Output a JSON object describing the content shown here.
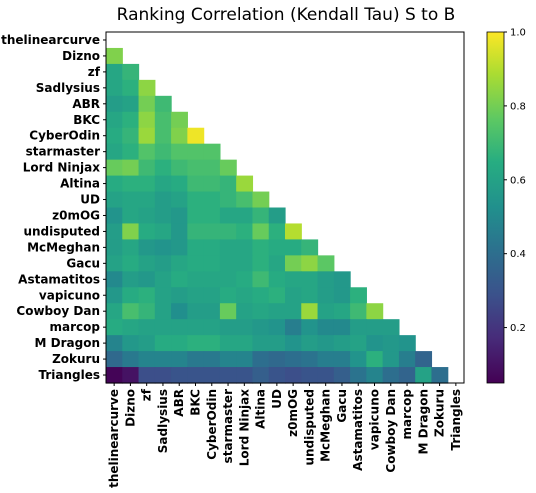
{
  "chart_data": {
    "type": "heatmap",
    "title": "Ranking Correlation (Kendall Tau) S to B",
    "labels": [
      "thelinearcurve",
      "Dizno",
      "zf",
      "Sadlysius",
      "ABR",
      "BKC",
      "CyberOdin",
      "starmaster",
      "Lord Ninjax",
      "Altina",
      "UD",
      "z0mOG",
      "undisputed",
      "McMeghan",
      "Gacu",
      "Astamatitos",
      "vapicuno",
      "Cowboy Dan",
      "marcop",
      "M Dragon",
      "Zokuru",
      "Triangles"
    ],
    "colormap": "viridis",
    "clim": [
      0.05,
      1.0
    ],
    "colorbar_ticks": [
      "0.2",
      "0.4",
      "0.6",
      "0.8",
      "1.0"
    ],
    "colorbar_tick_values": [
      0.2,
      0.4,
      0.6,
      0.8,
      1.0
    ],
    "matrix_lower": [
      [],
      [
        0.82
      ],
      [
        0.62,
        0.68
      ],
      [
        0.62,
        0.66,
        0.84
      ],
      [
        0.58,
        0.6,
        0.8,
        0.7
      ],
      [
        0.62,
        0.66,
        0.84,
        0.72,
        0.8
      ],
      [
        0.64,
        0.68,
        0.86,
        0.72,
        0.82,
        0.98
      ],
      [
        0.62,
        0.66,
        0.74,
        0.7,
        0.74,
        0.74,
        0.74
      ],
      [
        0.78,
        0.8,
        0.7,
        0.66,
        0.7,
        0.72,
        0.72,
        0.78
      ],
      [
        0.64,
        0.66,
        0.66,
        0.62,
        0.64,
        0.7,
        0.7,
        0.68,
        0.86
      ],
      [
        0.6,
        0.62,
        0.62,
        0.58,
        0.6,
        0.66,
        0.66,
        0.68,
        0.72,
        0.8
      ],
      [
        0.54,
        0.62,
        0.6,
        0.58,
        0.56,
        0.66,
        0.66,
        0.62,
        0.62,
        0.68,
        0.58
      ],
      [
        0.58,
        0.82,
        0.64,
        0.62,
        0.56,
        0.68,
        0.68,
        0.68,
        0.66,
        0.78,
        0.66,
        0.9
      ],
      [
        0.58,
        0.62,
        0.56,
        0.54,
        0.56,
        0.64,
        0.64,
        0.62,
        0.62,
        0.66,
        0.64,
        0.64,
        0.68
      ],
      [
        0.6,
        0.64,
        0.6,
        0.58,
        0.62,
        0.64,
        0.64,
        0.62,
        0.62,
        0.66,
        0.62,
        0.8,
        0.84,
        0.76
      ],
      [
        0.5,
        0.58,
        0.56,
        0.6,
        0.64,
        0.62,
        0.62,
        0.62,
        0.64,
        0.7,
        0.64,
        0.62,
        0.62,
        0.58,
        0.56
      ],
      [
        0.56,
        0.64,
        0.66,
        0.6,
        0.58,
        0.6,
        0.6,
        0.64,
        0.62,
        0.64,
        0.66,
        0.6,
        0.62,
        0.58,
        0.56,
        0.66
      ],
      [
        0.62,
        0.72,
        0.68,
        0.6,
        0.52,
        0.58,
        0.58,
        0.78,
        0.6,
        0.62,
        0.6,
        0.6,
        0.86,
        0.6,
        0.62,
        0.7,
        0.84
      ],
      [
        0.64,
        0.62,
        0.6,
        0.6,
        0.6,
        0.6,
        0.6,
        0.58,
        0.58,
        0.56,
        0.54,
        0.46,
        0.54,
        0.5,
        0.5,
        0.58,
        0.58,
        0.58
      ],
      [
        0.48,
        0.56,
        0.58,
        0.64,
        0.64,
        0.66,
        0.66,
        0.62,
        0.62,
        0.58,
        0.58,
        0.54,
        0.58,
        0.56,
        0.58,
        0.6,
        0.54,
        0.56,
        0.54
      ],
      [
        0.38,
        0.44,
        0.48,
        0.48,
        0.48,
        0.44,
        0.44,
        0.48,
        0.48,
        0.4,
        0.38,
        0.4,
        0.42,
        0.46,
        0.46,
        0.54,
        0.66,
        0.56,
        0.46,
        0.36
      ],
      [
        0.06,
        0.1,
        0.28,
        0.28,
        0.3,
        0.3,
        0.3,
        0.3,
        0.3,
        0.34,
        0.3,
        0.28,
        0.3,
        0.3,
        0.34,
        0.42,
        0.48,
        0.4,
        0.36,
        0.6,
        0.4
      ]
    ],
    "grid": false
  }
}
